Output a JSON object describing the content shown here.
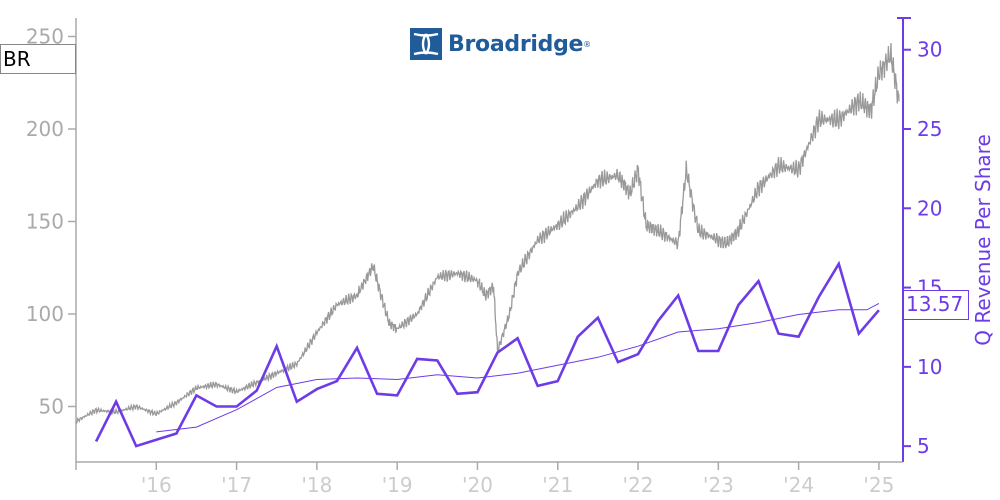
{
  "ticker": "BR",
  "logo": {
    "name": "Broadridge",
    "brand_color": "#1f5c99"
  },
  "last_value_label": "13.57",
  "colors": {
    "price": "#999999",
    "revenue": "#6d3ce6",
    "revenue_ma": "#6d3ce6",
    "left_axis": "#aaaaaa",
    "x_axis_text": "#cccccc"
  },
  "chart_data": {
    "type": "line",
    "x_ticks": [
      {
        "x": 2016.0,
        "label": "'16"
      },
      {
        "x": 2017.0,
        "label": "'17"
      },
      {
        "x": 2018.0,
        "label": "'18"
      },
      {
        "x": 2019.0,
        "label": "'19"
      },
      {
        "x": 2020.0,
        "label": "'20"
      },
      {
        "x": 2021.0,
        "label": "'21"
      },
      {
        "x": 2022.0,
        "label": "'22"
      },
      {
        "x": 2023.0,
        "label": "'23"
      },
      {
        "x": 2024.0,
        "label": "'24"
      },
      {
        "x": 2025.0,
        "label": "'25"
      }
    ],
    "xlim": [
      2015.0,
      2025.3
    ],
    "y_left": {
      "ticks": [
        50,
        100,
        150,
        200,
        250
      ],
      "ylim": [
        20,
        260
      ]
    },
    "y_right": {
      "label": "Q Revenue Per Share",
      "ticks": [
        5,
        10,
        15,
        20,
        25,
        30
      ],
      "ylim": [
        4,
        32
      ]
    },
    "legend": "none",
    "grid": false,
    "series": [
      {
        "axis": "left",
        "style": "price",
        "x": [
          2015.0,
          2015.25,
          2015.5,
          2015.75,
          2016.0,
          2016.25,
          2016.5,
          2016.75,
          2017.0,
          2017.25,
          2017.5,
          2017.75,
          2018.0,
          2018.25,
          2018.5,
          2018.7,
          2018.8,
          2018.9,
          2019.0,
          2019.25,
          2019.5,
          2019.75,
          2020.0,
          2020.1,
          2020.2,
          2020.25,
          2020.4,
          2020.5,
          2020.75,
          2021.0,
          2021.25,
          2021.5,
          2021.75,
          2021.9,
          2022.0,
          2022.1,
          2022.25,
          2022.5,
          2022.6,
          2022.75,
          2023.0,
          2023.1,
          2023.25,
          2023.5,
          2023.75,
          2024.0,
          2024.25,
          2024.5,
          2024.75,
          2024.9,
          2025.0,
          2025.15,
          2025.25
        ],
        "y": [
          42,
          48,
          47,
          50,
          46,
          52,
          60,
          62,
          58,
          63,
          68,
          73,
          90,
          105,
          110,
          126,
          110,
          95,
          92,
          100,
          120,
          122,
          118,
          110,
          115,
          80,
          100,
          122,
          140,
          148,
          158,
          172,
          175,
          165,
          178,
          148,
          145,
          138,
          178,
          145,
          140,
          138,
          145,
          168,
          180,
          178,
          205,
          205,
          215,
          210,
          230,
          240,
          215
        ]
      },
      {
        "axis": "right",
        "style": "revenue",
        "x": [
          2015.25,
          2015.5,
          2015.75,
          2016.0,
          2016.25,
          2016.5,
          2016.75,
          2017.0,
          2017.25,
          2017.5,
          2017.75,
          2018.0,
          2018.25,
          2018.5,
          2018.75,
          2019.0,
          2019.25,
          2019.5,
          2019.75,
          2020.0,
          2020.25,
          2020.5,
          2020.75,
          2021.0,
          2021.25,
          2021.5,
          2021.75,
          2022.0,
          2022.25,
          2022.5,
          2022.75,
          2023.0,
          2023.25,
          2023.5,
          2023.75,
          2024.0,
          2024.25,
          2024.5,
          2024.75,
          2025.0
        ],
        "y": [
          5.3,
          7.8,
          5.0,
          5.4,
          5.8,
          8.2,
          7.5,
          7.5,
          8.5,
          11.3,
          7.8,
          8.6,
          9.1,
          11.2,
          8.3,
          8.2,
          10.5,
          10.4,
          8.3,
          8.4,
          10.9,
          11.8,
          8.8,
          9.1,
          11.9,
          13.1,
          10.3,
          10.8,
          12.9,
          14.5,
          11.0,
          11.0,
          13.9,
          15.4,
          12.1,
          11.9,
          14.4,
          16.5,
          12.1,
          13.57
        ]
      },
      {
        "axis": "right",
        "style": "revenue_ma",
        "x": [
          2016.0,
          2016.5,
          2017.0,
          2017.5,
          2018.0,
          2018.5,
          2019.0,
          2019.5,
          2020.0,
          2020.5,
          2021.0,
          2021.5,
          2022.0,
          2022.5,
          2023.0,
          2023.5,
          2024.0,
          2024.5,
          2024.85,
          2025.0
        ],
        "y": [
          5.9,
          6.2,
          7.3,
          8.7,
          9.2,
          9.3,
          9.2,
          9.5,
          9.3,
          9.6,
          10.1,
          10.6,
          11.3,
          12.2,
          12.4,
          12.8,
          13.3,
          13.6,
          13.6,
          14.0
        ]
      }
    ]
  }
}
